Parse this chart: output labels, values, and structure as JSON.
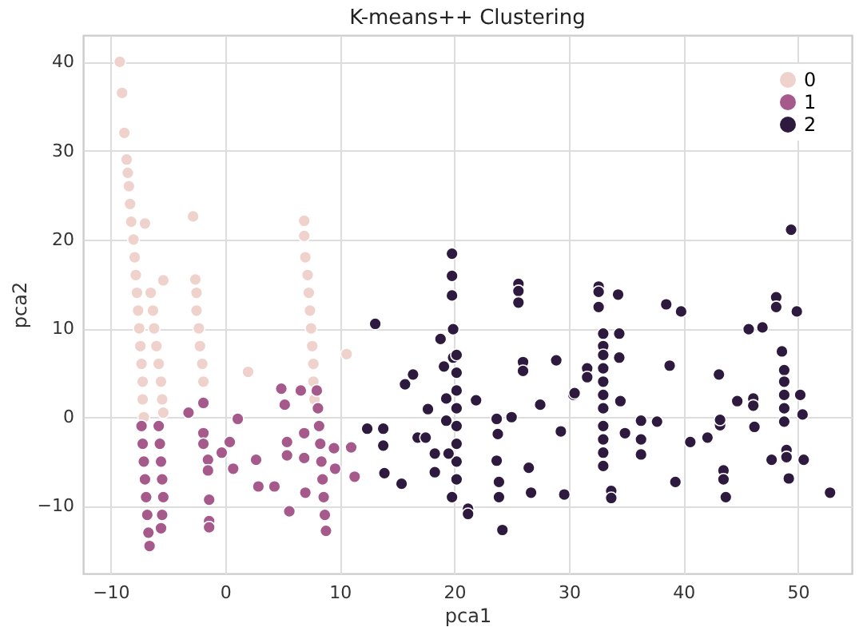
{
  "chart_data": {
    "type": "scatter",
    "title": "K-means++ Clustering",
    "xlabel": "pca1",
    "ylabel": "pca2",
    "xlim": [
      -12.4,
      54.7
    ],
    "ylim": [
      -17.6,
      43
    ],
    "xticks": [
      -10,
      0,
      10,
      20,
      30,
      40,
      50
    ],
    "yticks": [
      -10,
      0,
      10,
      20,
      30,
      40
    ],
    "grid": true,
    "legend": "top right",
    "marker": "circle",
    "series": [
      {
        "name": "0",
        "color": "#efd2cc",
        "x": [
          -9.2,
          -9,
          -8.8,
          -8.6,
          -8.5,
          -8.4,
          -8.3,
          -8.2,
          -8,
          -7.9,
          -7.8,
          -7.7,
          -7.6,
          -7.5,
          -7.4,
          -7.3,
          -7.2,
          -7.2,
          -7.1,
          -6.5,
          -6.3,
          -6.2,
          -6,
          -5.8,
          -5.6,
          -5.5,
          -5.4,
          -7,
          -2.8,
          -2.6,
          -2.5,
          -2.5,
          -2.3,
          -2.2,
          -2,
          -1.9,
          6.9,
          6.9,
          7,
          7.2,
          7.3,
          7.4,
          7.5,
          7.6,
          7.7,
          7.7,
          7.8,
          -5.4,
          2,
          10.6
        ],
        "values": [
          40,
          36.5,
          32,
          29,
          27.5,
          26,
          24,
          22,
          20,
          18,
          16,
          14,
          12,
          10,
          8,
          6,
          4,
          2,
          0,
          14,
          12,
          10,
          8,
          6,
          4,
          2,
          0.5,
          21.8,
          22.6,
          15.5,
          14,
          12,
          10,
          8,
          6,
          4,
          22.1,
          20.4,
          18,
          16,
          14,
          12,
          10,
          8,
          6,
          4,
          2,
          15.4,
          5.1,
          7.1
        ]
      },
      {
        "name": "1",
        "color": "#a65a8b",
        "x": [
          -7.3,
          -7.2,
          -7.1,
          -7,
          -6.9,
          -6.8,
          -6.7,
          -6.6,
          -5.8,
          -5.7,
          -5.6,
          -5.5,
          -5.4,
          -5.5,
          -5.6,
          -3.2,
          -1.9,
          -1.9,
          -1.9,
          -1.5,
          -1.5,
          -1.4,
          -1.4,
          -1.4,
          1.1,
          0.4,
          -0.3,
          0.7,
          2.7,
          2.9,
          4.3,
          5.6,
          4.9,
          5.2,
          5.4,
          5.4,
          6.9,
          6.9,
          7,
          6.6,
          8,
          8.1,
          8.2,
          8.3,
          8.4,
          8.5,
          8.6,
          8.7,
          8.8,
          9.5,
          9.6,
          11,
          11.3
        ],
        "values": [
          -1,
          -3,
          -5,
          -7,
          -9,
          -11,
          -13,
          -14.5,
          -1,
          -3,
          -5,
          -7,
          -9,
          -11,
          -12.5,
          0.5,
          1.6,
          -1.8,
          -3,
          -4.8,
          -6,
          -9.3,
          -11.7,
          -12.4,
          -0.2,
          -2.8,
          -4,
          -5.8,
          -4.8,
          -7.8,
          -7.8,
          -10.6,
          3.2,
          1.4,
          -2.8,
          -4.3,
          -1.8,
          -4.6,
          -8.5,
          3,
          3,
          1,
          -1,
          -3,
          -5,
          -7,
          -9,
          -11,
          -12.8,
          -3.5,
          -5.8,
          -3.4,
          -6.7
        ]
      },
      {
        "name": "2",
        "color": "#2d1a3e",
        "x": [
          13.1,
          12.4,
          19.8,
          19.8,
          19.8,
          19.9,
          18.8,
          19.1,
          19.9,
          20.2,
          20.2,
          20.2,
          20.2,
          20.2,
          20.2,
          20.2,
          20.2,
          16.4,
          15.7,
          17.7,
          19.3,
          19.3,
          21.9,
          13.8,
          13.8,
          13.9,
          15.4,
          16.8,
          17.5,
          18.3,
          18.3,
          19.5,
          19.8,
          21.2,
          21.2,
          24.2,
          23.7,
          23.8,
          23.7,
          23.9,
          23.9,
          25,
          26,
          26,
          25.6,
          25.6,
          25.6,
          26.5,
          26.7,
          27.5,
          28.9,
          29.3,
          29.6,
          30.4,
          31.6,
          31.6,
          49.4,
          32.6,
          32.6,
          32.6,
          34.3,
          33,
          33,
          33,
          33,
          33,
          33,
          33,
          33,
          33,
          33,
          33,
          30.5,
          34.4,
          34.4,
          34.5,
          34.9,
          33.7,
          33.7,
          36.3,
          36.3,
          36.3,
          37.7,
          38.5,
          39.8,
          38.8,
          39.3,
          40.6,
          42.1,
          43.1,
          43.2,
          43.2,
          43.5,
          43.5,
          43.7,
          44.7,
          45.7,
          46.9,
          46.1,
          46.1,
          46.2,
          47.7,
          48.1,
          48.1,
          49.9,
          48.6,
          48.8,
          48.8,
          48.8,
          48.8,
          48.8,
          49,
          49,
          49.2,
          50.2,
          50.4,
          50.5,
          52.8
        ],
        "values": [
          10.5,
          -1.3,
          18.4,
          15.9,
          13.7,
          9.9,
          8.8,
          5.7,
          6.7,
          7,
          5,
          3,
          1,
          -1,
          -3,
          -5,
          -7,
          4.8,
          3.7,
          0.9,
          2.1,
          -0.4,
          1.9,
          -1.3,
          -3.2,
          -6.3,
          -7.5,
          -2.3,
          -2.3,
          -4.1,
          -6.2,
          -4.1,
          -9,
          -10.3,
          -10.9,
          -12.7,
          -0.2,
          -1.9,
          -4.9,
          -7.3,
          -9,
          0,
          6.2,
          5.2,
          15,
          14.2,
          12.9,
          -5.7,
          -8.5,
          1.4,
          6.4,
          -1.6,
          -8.7,
          2.5,
          5.5,
          4.5,
          21.1,
          14.7,
          14.1,
          12.4,
          13.8,
          9.4,
          8,
          7,
          5.5,
          4,
          2.5,
          1,
          -1,
          -2.5,
          -4,
          -5.5,
          2.7,
          9.4,
          6.7,
          1.8,
          -1.8,
          -8.3,
          -9.1,
          -0.4,
          -2.5,
          -4.2,
          -0.5,
          12.7,
          11.9,
          5.8,
          -7.3,
          -2.8,
          -2.3,
          4.8,
          -0.9,
          -0.3,
          -6,
          -7,
          -9,
          1.8,
          9.9,
          10.1,
          2.1,
          1.3,
          -1.1,
          -4.8,
          13.5,
          12.4,
          11.9,
          7.4,
          5.3,
          4,
          2.5,
          1,
          -0.5,
          -3.7,
          -4.5,
          -6.9,
          2.5,
          0.3,
          -4.8,
          -8.5
        ]
      }
    ]
  }
}
